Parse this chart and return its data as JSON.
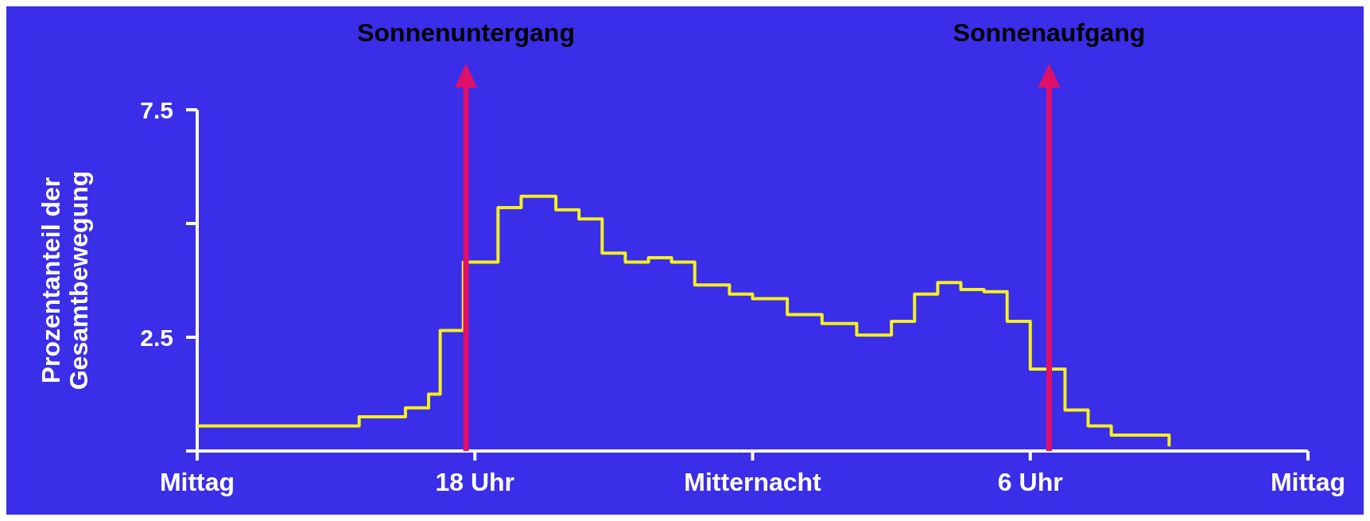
{
  "chart_data": {
    "type": "step",
    "ylabel": "Prozentanteil der Gesamtbewegung",
    "categories": [
      "Mittag",
      null,
      null,
      null,
      null,
      null,
      null,
      null,
      null,
      null,
      null,
      null,
      null,
      null,
      null,
      null,
      null,
      null,
      null,
      null,
      null,
      null,
      null,
      null,
      "18 Uhr",
      null,
      null,
      null,
      null,
      null,
      null,
      null,
      null,
      null,
      null,
      null,
      null,
      null,
      null,
      null,
      null,
      null,
      null,
      null,
      null,
      null,
      null,
      null,
      "Mitternacht",
      null,
      null,
      null,
      null,
      null,
      null,
      null,
      null,
      null,
      null,
      null,
      null,
      null,
      null,
      null,
      null,
      null,
      null,
      null,
      null,
      null,
      null,
      null,
      "6 Uhr",
      null,
      null,
      null,
      null,
      null,
      null,
      null,
      null,
      null,
      null,
      null,
      null,
      null,
      null,
      null,
      null,
      null,
      null,
      null,
      null,
      null,
      null,
      null,
      "Mittag"
    ],
    "series": [
      {
        "color": "#f5f01e",
        "values": [
          0.55,
          0.55,
          0.55,
          0.55,
          0.55,
          0.55,
          0.55,
          0.55,
          0.55,
          0.55,
          0.55,
          0.55,
          0.55,
          0.55,
          0.75,
          0.75,
          0.75,
          0.75,
          0.95,
          0.95,
          1.25,
          2.65,
          2.65,
          4.15,
          4.15,
          4.15,
          5.35,
          5.35,
          5.6,
          5.6,
          5.6,
          5.3,
          5.3,
          5.1,
          5.1,
          4.35,
          4.35,
          4.15,
          4.15,
          4.25,
          4.25,
          4.15,
          4.15,
          3.65,
          3.65,
          3.65,
          3.45,
          3.45,
          3.35,
          3.35,
          3.35,
          3.0,
          3.0,
          3.0,
          2.8,
          2.8,
          2.8,
          2.55,
          2.55,
          2.55,
          2.85,
          2.85,
          3.45,
          3.45,
          3.7,
          3.7,
          3.55,
          3.55,
          3.5,
          3.5,
          2.85,
          2.85,
          1.8,
          1.8,
          1.8,
          0.9,
          0.9,
          0.55,
          0.55,
          0.35,
          0.35,
          0.35,
          0.35,
          0.35,
          0.1,
          null,
          null,
          null,
          null,
          null,
          null,
          null,
          null,
          null,
          null,
          null,
          null
        ]
      }
    ],
    "ylim": [
      0,
      7.5
    ],
    "yticks": [
      {
        "value": 0,
        "label": null
      },
      2.5,
      {
        "value": 5,
        "label": null
      },
      7.5
    ],
    "annotations": [
      "Sonnenuntergang",
      "Sonnenaufgang"
    ],
    "grid": false
  }
}
